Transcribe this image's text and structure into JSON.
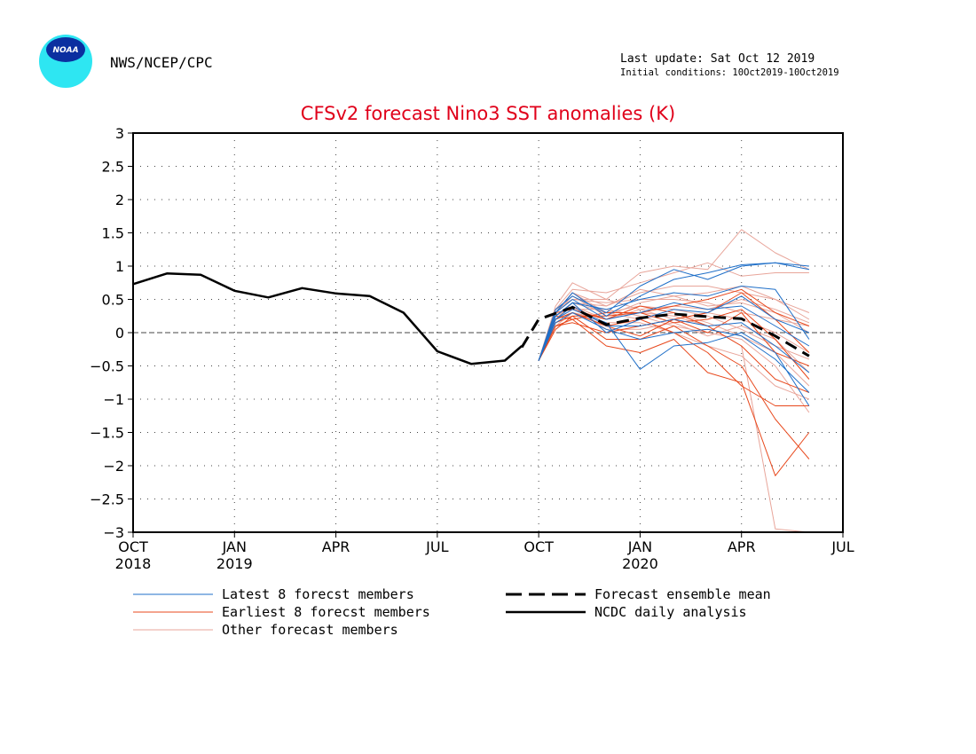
{
  "header": {
    "agency": "NWS/NCEP/CPC",
    "logo_text": "NOAA",
    "last_update": "Last update: Sat Oct 12 2019",
    "initial_conditions": "Initial conditions: 10Oct2019-10Oct2019"
  },
  "colors": {
    "title": "#e0001a",
    "latest_members": "#1f6fc8",
    "earliest_members": "#e8481c",
    "other_members": "#e8a59a",
    "mean": "#000000",
    "analysis": "#000000"
  },
  "chart_data": {
    "type": "line",
    "title": "CFSv2 forecast Nino3 SST anomalies (K)",
    "ylim": [
      -3,
      3
    ],
    "yticks": [
      "3",
      "2.5",
      "2",
      "1.5",
      "1",
      "0.5",
      "0",
      "−0.5",
      "−1",
      "−1.5",
      "−2",
      "−2.5",
      "−3"
    ],
    "ytick_values": [
      3,
      2.5,
      2,
      1.5,
      1,
      0.5,
      0,
      -0.5,
      -1,
      -1.5,
      -2,
      -2.5,
      -3
    ],
    "x_start": "2018-10",
    "xlim_months": [
      0,
      21
    ],
    "xtick_labels": [
      {
        "month": 0,
        "line1": "OCT",
        "line2": "2018"
      },
      {
        "month": 3,
        "line1": "JAN",
        "line2": "2019"
      },
      {
        "month": 6,
        "line1": "APR",
        "line2": ""
      },
      {
        "month": 9,
        "line1": "JUL",
        "line2": ""
      },
      {
        "month": 12,
        "line1": "OCT",
        "line2": ""
      },
      {
        "month": 15,
        "line1": "JAN",
        "line2": "2020"
      },
      {
        "month": 18,
        "line1": "APR",
        "line2": ""
      },
      {
        "month": 21,
        "line1": "JUL",
        "line2": ""
      }
    ],
    "grid": true,
    "zero_line": true,
    "legend": [
      {
        "label": "Latest 8 forecst members",
        "style": "latest"
      },
      {
        "label": "Earliest 8 forecst members",
        "style": "earliest"
      },
      {
        "label": "Other forecast members",
        "style": "other"
      },
      {
        "label": "Forecast ensemble mean",
        "style": "mean"
      },
      {
        "label": "NCDC daily analysis",
        "style": "analysis"
      }
    ],
    "legend_placement": "bottom",
    "forecast_x_months": [
      12,
      12.5,
      13,
      14,
      15,
      16,
      17,
      18,
      19,
      20
    ],
    "series": [
      {
        "style": "analysis",
        "x_months": [
          0,
          1,
          2,
          3,
          4,
          5,
          6,
          7,
          8,
          9,
          10,
          11,
          11.5
        ],
        "values": [
          0.73,
          0.89,
          0.87,
          0.63,
          0.53,
          0.67,
          0.59,
          0.55,
          0.3,
          -0.28,
          -0.47,
          -0.42,
          -0.2
        ]
      },
      {
        "style": "mean",
        "x_months": [
          11.5,
          12,
          13,
          14,
          15,
          16,
          17,
          18,
          19,
          20
        ],
        "values": [
          -0.22,
          0.2,
          0.38,
          0.12,
          0.22,
          0.28,
          0.24,
          0.21,
          -0.05,
          -0.35
        ]
      },
      {
        "style": "latest",
        "values": [
          -0.42,
          0.35,
          0.55,
          0.3,
          0.7,
          0.95,
          0.8,
          1.0,
          1.05,
          1.0
        ]
      },
      {
        "style": "latest",
        "values": [
          -0.42,
          0.3,
          0.6,
          0.25,
          0.55,
          0.8,
          0.9,
          1.02,
          1.05,
          0.95
        ]
      },
      {
        "style": "latest",
        "values": [
          -0.42,
          0.25,
          0.45,
          0.35,
          0.5,
          0.6,
          0.55,
          0.7,
          0.65,
          -0.1
        ]
      },
      {
        "style": "latest",
        "values": [
          -0.42,
          0.3,
          0.5,
          0.2,
          0.3,
          0.45,
          0.35,
          0.4,
          0.1,
          -0.2
        ]
      },
      {
        "style": "latest",
        "values": [
          -0.42,
          0.2,
          0.4,
          0.1,
          0.1,
          0.2,
          0.1,
          0.15,
          -0.2,
          -0.6
        ]
      },
      {
        "style": "latest",
        "values": [
          -0.42,
          0.15,
          0.3,
          0.05,
          -0.1,
          0.0,
          0.05,
          -0.05,
          -0.4,
          -0.9
        ]
      },
      {
        "style": "latest",
        "values": [
          -0.42,
          0.2,
          0.35,
          0.15,
          -0.55,
          -0.2,
          -0.15,
          0.0,
          -0.3,
          -1.1
        ]
      },
      {
        "style": "latest",
        "values": [
          -0.42,
          0.25,
          0.45,
          0.0,
          0.2,
          0.35,
          0.3,
          0.55,
          0.2,
          0.0
        ]
      },
      {
        "style": "earliest",
        "values": [
          -0.42,
          0.1,
          0.2,
          -0.2,
          -0.3,
          -0.1,
          -0.6,
          -0.75,
          -2.15,
          -1.5
        ]
      },
      {
        "style": "earliest",
        "values": [
          -0.42,
          0.15,
          0.25,
          -0.1,
          -0.1,
          0.1,
          -0.2,
          -0.5,
          -1.3,
          -1.9
        ]
      },
      {
        "style": "earliest",
        "values": [
          -0.42,
          0.2,
          0.3,
          0.1,
          0.2,
          0.0,
          -0.3,
          -0.8,
          -1.1,
          -1.1
        ]
      },
      {
        "style": "earliest",
        "values": [
          -0.42,
          0.3,
          0.35,
          0.2,
          0.4,
          0.3,
          0.1,
          -0.2,
          -0.7,
          -0.9
        ]
      },
      {
        "style": "earliest",
        "values": [
          -0.42,
          0.1,
          0.15,
          0.0,
          0.1,
          0.2,
          0.3,
          0.6,
          0.2,
          -0.3
        ]
      },
      {
        "style": "earliest",
        "values": [
          -0.42,
          0.05,
          0.25,
          0.25,
          0.3,
          0.4,
          0.5,
          0.65,
          0.3,
          0.1
        ]
      },
      {
        "style": "earliest",
        "values": [
          -0.42,
          0.2,
          0.3,
          0.1,
          -0.05,
          0.2,
          0.0,
          0.3,
          -0.3,
          -0.5
        ]
      },
      {
        "style": "earliest",
        "values": [
          -0.42,
          0.25,
          0.2,
          0.3,
          0.3,
          0.15,
          0.2,
          0.35,
          -0.1,
          -0.7
        ]
      },
      {
        "style": "other",
        "values": [
          -0.42,
          0.4,
          0.75,
          0.5,
          0.9,
          1.0,
          0.95,
          1.55,
          1.2,
          0.95
        ]
      },
      {
        "style": "other",
        "values": [
          -0.42,
          0.35,
          0.65,
          0.6,
          0.75,
          0.9,
          1.05,
          0.85,
          0.9,
          0.9
        ]
      },
      {
        "style": "other",
        "values": [
          -0.42,
          0.3,
          0.6,
          0.4,
          0.6,
          0.7,
          0.7,
          0.6,
          0.5,
          0.2
        ]
      },
      {
        "style": "other",
        "values": [
          -0.42,
          0.3,
          0.5,
          0.45,
          0.5,
          0.5,
          0.45,
          0.3,
          0.2,
          0.1
        ]
      },
      {
        "style": "other",
        "values": [
          -0.42,
          0.25,
          0.45,
          0.3,
          0.4,
          0.35,
          0.25,
          0.05,
          -0.2,
          -0.4
        ]
      },
      {
        "style": "other",
        "values": [
          -0.42,
          0.2,
          0.4,
          0.2,
          0.3,
          0.25,
          0.1,
          -0.2,
          -2.95,
          -3.0
        ]
      },
      {
        "style": "other",
        "values": [
          -0.42,
          0.2,
          0.35,
          0.35,
          0.25,
          0.1,
          0.0,
          -0.1,
          -0.5,
          -1.2
        ]
      },
      {
        "style": "other",
        "values": [
          -0.42,
          0.15,
          0.3,
          0.15,
          0.15,
          0.0,
          -0.2,
          -0.35,
          -0.8,
          -1.0
        ]
      },
      {
        "style": "other",
        "values": [
          -0.42,
          0.3,
          0.55,
          0.25,
          0.45,
          0.55,
          0.4,
          0.45,
          0.3,
          0.0
        ]
      },
      {
        "style": "other",
        "values": [
          -0.42,
          0.35,
          0.5,
          0.5,
          0.35,
          0.2,
          0.3,
          0.2,
          0.0,
          -0.3
        ]
      },
      {
        "style": "other",
        "values": [
          -0.42,
          0.25,
          0.4,
          0.05,
          0.05,
          0.15,
          -0.05,
          0.1,
          -0.1,
          -0.6
        ]
      },
      {
        "style": "other",
        "values": [
          -0.42,
          0.2,
          0.45,
          0.4,
          0.65,
          0.55,
          0.6,
          0.7,
          0.5,
          0.3
        ]
      },
      {
        "style": "other",
        "values": [
          -0.42,
          0.3,
          0.6,
          0.3,
          0.2,
          0.3,
          0.15,
          -0.05,
          -0.3,
          -0.8
        ]
      },
      {
        "style": "other",
        "values": [
          -0.42,
          0.1,
          0.3,
          0.2,
          0.35,
          0.4,
          0.35,
          0.5,
          0.35,
          0.15
        ]
      }
    ]
  }
}
